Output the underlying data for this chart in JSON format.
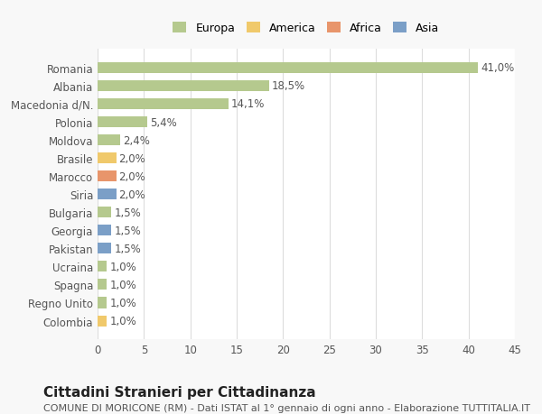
{
  "categories": [
    "Romania",
    "Albania",
    "Macedonia d/N.",
    "Polonia",
    "Moldova",
    "Brasile",
    "Marocco",
    "Siria",
    "Bulgaria",
    "Georgia",
    "Pakistan",
    "Ucraina",
    "Spagna",
    "Regno Unito",
    "Colombia"
  ],
  "values": [
    41.0,
    18.5,
    14.1,
    5.4,
    2.4,
    2.0,
    2.0,
    2.0,
    1.5,
    1.5,
    1.5,
    1.0,
    1.0,
    1.0,
    1.0
  ],
  "labels": [
    "41,0%",
    "18,5%",
    "14,1%",
    "5,4%",
    "2,4%",
    "2,0%",
    "2,0%",
    "2,0%",
    "1,5%",
    "1,5%",
    "1,5%",
    "1,0%",
    "1,0%",
    "1,0%",
    "1,0%"
  ],
  "colors": [
    "#b5c98e",
    "#b5c98e",
    "#b5c98e",
    "#b5c98e",
    "#b5c98e",
    "#f0c96b",
    "#e8956b",
    "#7b9fc7",
    "#b5c98e",
    "#7b9fc7",
    "#7b9fc7",
    "#b5c98e",
    "#b5c98e",
    "#b5c98e",
    "#f0c96b"
  ],
  "legend_labels": [
    "Europa",
    "America",
    "Africa",
    "Asia"
  ],
  "legend_colors": [
    "#b5c98e",
    "#f0c96b",
    "#e8956b",
    "#7b9fc7"
  ],
  "xlim": [
    0,
    45
  ],
  "xticks": [
    0,
    5,
    10,
    15,
    20,
    25,
    30,
    35,
    40,
    45
  ],
  "title": "Cittadini Stranieri per Cittadinanza",
  "subtitle": "COMUNE DI MORICONE (RM) - Dati ISTAT al 1° gennaio di ogni anno - Elaborazione TUTTITALIA.IT",
  "background_color": "#f8f8f8",
  "bar_background": "#ffffff",
  "grid_color": "#dddddd",
  "bar_height": 0.6,
  "label_fontsize": 8.5,
  "tick_fontsize": 8.5,
  "title_fontsize": 11,
  "subtitle_fontsize": 8
}
